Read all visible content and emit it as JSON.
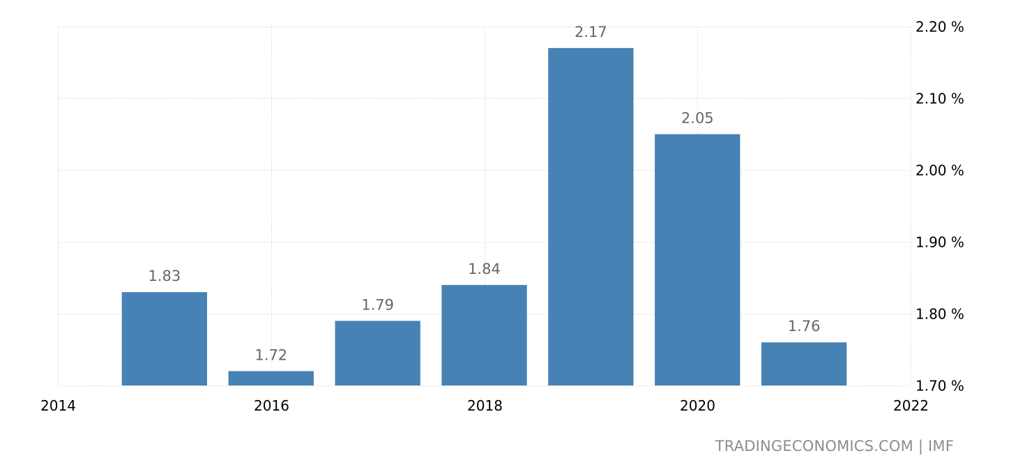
{
  "chart_data": {
    "type": "bar",
    "categories": [
      "2015",
      "2016",
      "2017",
      "2018",
      "2019",
      "2020",
      "2021"
    ],
    "x": [
      2015,
      2016,
      2017,
      2018,
      2019,
      2020,
      2021
    ],
    "values": [
      1.83,
      1.72,
      1.79,
      1.84,
      2.17,
      2.05,
      1.76
    ],
    "data_labels": [
      "1.83",
      "1.72",
      "1.79",
      "1.84",
      "2.17",
      "2.05",
      "1.76"
    ],
    "title": "",
    "xlabel": "",
    "ylabel": "",
    "xlim": [
      2014,
      2022
    ],
    "ylim": [
      1.7,
      2.2
    ],
    "x_ticks": [
      "2014",
      "2016",
      "2018",
      "2020",
      "2022"
    ],
    "x_tick_values": [
      2014,
      2016,
      2018,
      2020,
      2022
    ],
    "y_ticks": [
      "1.70 %",
      "1.80 %",
      "1.90 %",
      "2.00 %",
      "2.10 %",
      "2.20 %"
    ],
    "y_tick_values": [
      1.7,
      1.8,
      1.9,
      2.0,
      2.1,
      2.2
    ],
    "y_axis_position": "right",
    "grid": true,
    "legend": "none",
    "bar_color": "#4682b4"
  },
  "source": "TRADINGECONOMICS.COM  |  IMF"
}
